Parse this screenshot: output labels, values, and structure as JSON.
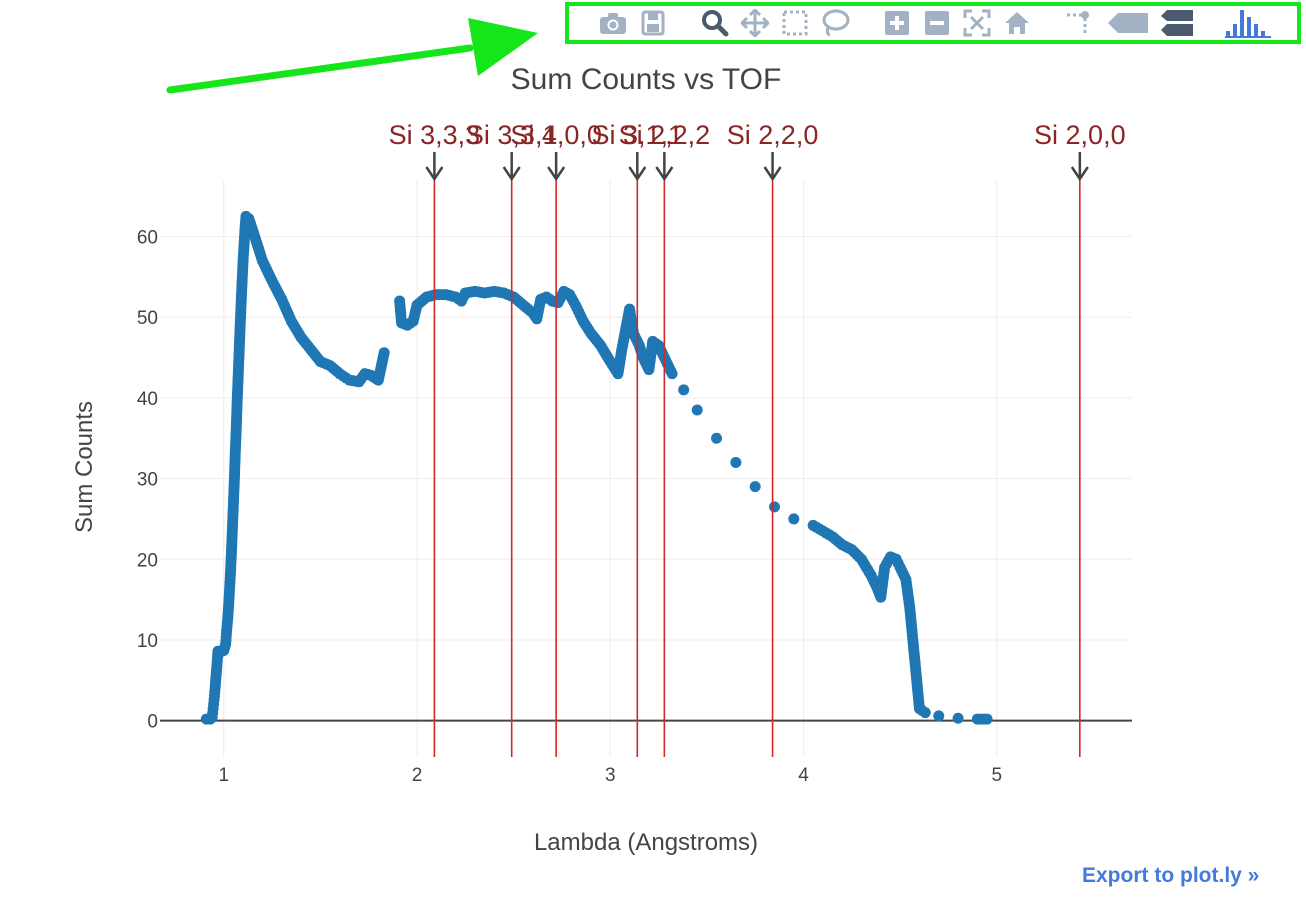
{
  "modebar": {
    "buttons": [
      {
        "name": "camera-icon"
      },
      {
        "name": "save-icon"
      },
      {
        "name": "zoom-icon"
      },
      {
        "name": "pan-icon"
      },
      {
        "name": "box-select-icon"
      },
      {
        "name": "lasso-select-icon"
      },
      {
        "name": "zoom-in-icon"
      },
      {
        "name": "zoom-out-icon"
      },
      {
        "name": "autoscale-icon"
      },
      {
        "name": "home-icon"
      },
      {
        "name": "spike-lines-icon"
      },
      {
        "name": "hover-closest-icon"
      },
      {
        "name": "hover-compare-icon"
      },
      {
        "name": "plotly-logo-icon"
      }
    ],
    "icon_color": "#a3b1c5",
    "active_color": "#4c5a6d",
    "logo_color": "#447adb",
    "highlight_color": "#15e619"
  },
  "export_label": "Export to plot.ly »",
  "chart_data": {
    "type": "scatter",
    "title": "Sum Counts vs TOF",
    "xlabel": "Lambda (Angstroms)",
    "ylabel": "Sum Counts",
    "xlim": [
      0.67,
      5.7
    ],
    "ylim": [
      -4.5,
      67
    ],
    "x_ticks": [
      1,
      2,
      3,
      4,
      5
    ],
    "y_ticks": [
      0,
      10,
      20,
      30,
      40,
      50,
      60
    ],
    "grid": true,
    "marker_color": "#1f77b4",
    "line_color": "#d62728",
    "annotation_color": "#8b2525",
    "series": [
      {
        "points": [
          [
            0.91,
            0.2
          ],
          [
            0.93,
            0.2
          ],
          [
            0.94,
            0.4
          ],
          [
            0.945,
            1.5
          ],
          [
            0.95,
            2.6
          ],
          [
            0.955,
            4.0
          ],
          [
            0.96,
            5.5
          ],
          [
            0.965,
            7.0
          ],
          [
            0.97,
            8.6
          ],
          [
            0.98,
            8.5
          ],
          [
            0.99,
            8.6
          ],
          [
            1.0,
            8.7
          ],
          [
            1.01,
            9.5
          ],
          [
            1.015,
            11.2
          ],
          [
            1.02,
            12.5
          ],
          [
            1.025,
            14.2
          ],
          [
            1.03,
            16.3
          ],
          [
            1.035,
            18.5
          ],
          [
            1.04,
            21.0
          ],
          [
            1.045,
            24.0
          ],
          [
            1.05,
            27.0
          ],
          [
            1.055,
            30.0
          ],
          [
            1.06,
            33.5
          ],
          [
            1.065,
            36.5
          ],
          [
            1.07,
            40.0
          ],
          [
            1.075,
            43.0
          ],
          [
            1.08,
            46.0
          ],
          [
            1.085,
            49.0
          ],
          [
            1.09,
            51.8
          ],
          [
            1.095,
            54.5
          ],
          [
            1.1,
            57.0
          ],
          [
            1.105,
            59.0
          ],
          [
            1.11,
            61.0
          ],
          [
            1.115,
            62.5
          ],
          [
            1.13,
            62.2
          ],
          [
            1.16,
            60.0
          ],
          [
            1.2,
            57.0
          ],
          [
            1.25,
            54.5
          ],
          [
            1.3,
            52.2
          ],
          [
            1.35,
            49.5
          ],
          [
            1.4,
            47.5
          ],
          [
            1.45,
            46.0
          ],
          [
            1.5,
            44.5
          ],
          [
            1.55,
            44.0
          ],
          [
            1.6,
            43.0
          ],
          [
            1.65,
            42.2
          ],
          [
            1.7,
            42.0
          ],
          [
            1.73,
            43.0
          ],
          [
            1.76,
            42.8
          ],
          [
            1.8,
            42.2
          ],
          [
            1.83,
            45.6
          ],
          [
            1.91,
            52.0
          ],
          [
            1.92,
            49.3
          ],
          [
            1.95,
            49.0
          ],
          [
            1.98,
            49.5
          ],
          [
            2.0,
            51.5
          ],
          [
            2.05,
            52.5
          ],
          [
            2.1,
            52.8
          ],
          [
            2.15,
            52.8
          ],
          [
            2.2,
            52.5
          ],
          [
            2.23,
            52.0
          ],
          [
            2.25,
            53.0
          ],
          [
            2.3,
            53.2
          ],
          [
            2.35,
            53.0
          ],
          [
            2.4,
            53.2
          ],
          [
            2.45,
            53.0
          ],
          [
            2.5,
            52.5
          ],
          [
            2.55,
            51.5
          ],
          [
            2.6,
            50.5
          ],
          [
            2.62,
            49.8
          ],
          [
            2.64,
            52.2
          ],
          [
            2.67,
            52.5
          ],
          [
            2.7,
            52.0
          ],
          [
            2.73,
            51.8
          ],
          [
            2.76,
            53.2
          ],
          [
            2.79,
            52.8
          ],
          [
            2.82,
            51.5
          ],
          [
            2.86,
            49.5
          ],
          [
            2.9,
            48.0
          ],
          [
            2.95,
            46.5
          ],
          [
            3.0,
            44.5
          ],
          [
            3.04,
            43.0
          ],
          [
            3.06,
            46.0
          ],
          [
            3.1,
            51.0
          ],
          [
            3.12,
            48.0
          ],
          [
            3.15,
            46.5
          ],
          [
            3.17,
            45.0
          ],
          [
            3.2,
            43.5
          ],
          [
            3.22,
            47.0
          ],
          [
            3.25,
            46.5
          ],
          [
            3.28,
            45.0
          ],
          [
            3.32,
            43.0
          ],
          [
            3.38,
            41.0
          ],
          [
            3.45,
            38.5
          ],
          [
            3.55,
            35.0
          ],
          [
            3.65,
            32.0
          ],
          [
            3.75,
            29.0
          ],
          [
            3.85,
            26.5
          ],
          [
            3.95,
            25.0
          ],
          [
            4.05,
            24.2
          ],
          [
            4.1,
            23.5
          ],
          [
            4.15,
            22.8
          ],
          [
            4.2,
            21.8
          ],
          [
            4.25,
            21.2
          ],
          [
            4.3,
            20.0
          ],
          [
            4.35,
            18.0
          ],
          [
            4.38,
            16.5
          ],
          [
            4.4,
            15.3
          ],
          [
            4.42,
            19.0
          ],
          [
            4.45,
            20.3
          ],
          [
            4.48,
            20.0
          ],
          [
            4.5,
            19.0
          ],
          [
            4.53,
            17.5
          ],
          [
            4.55,
            14.0
          ],
          [
            4.57,
            9.0
          ],
          [
            4.59,
            4.0
          ],
          [
            4.6,
            1.5
          ],
          [
            4.63,
            1.0
          ],
          [
            4.7,
            0.6
          ],
          [
            4.8,
            0.3
          ],
          [
            4.9,
            0.2
          ],
          [
            4.95,
            0.2
          ]
        ]
      }
    ],
    "annotations": [
      {
        "label": "Si 3,3,3",
        "x": 2.09
      },
      {
        "label": "Si 3,3,1",
        "x": 2.49
      },
      {
        "label": "Si 4,0,0",
        "x": 2.72
      },
      {
        "label": "Si 3,1,1",
        "x": 3.14
      },
      {
        "label": "Si 2,2,2",
        "x": 3.28
      },
      {
        "label": "Si 2,2,0",
        "x": 3.84
      },
      {
        "label": "Si 2,0,0",
        "x": 5.43
      }
    ]
  }
}
